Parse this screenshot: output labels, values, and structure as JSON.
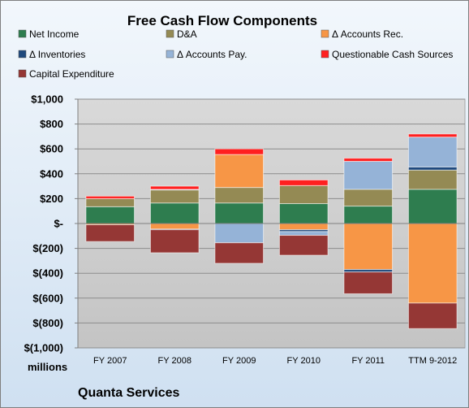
{
  "chart_data": {
    "type": "bar",
    "stacked": true,
    "title": "Free Cash Flow Components",
    "unit_label": "millions",
    "company": "Quanta Services",
    "categories": [
      "FY 2007",
      "FY 2008",
      "FY 2009",
      "FY 2010",
      "FY 2011",
      "TTM 9-2012"
    ],
    "y_ticks": [
      "$1,000",
      "$800",
      "$600",
      "$400",
      "$200",
      "$-",
      "$(200)",
      "$(400)",
      "$(600)",
      "$(800)",
      "$(1,000)"
    ],
    "ylim": [
      -1000,
      1000
    ],
    "grid": true,
    "legend_position": "top",
    "series": [
      {
        "name": "Net Income",
        "color": "#2e7d4f",
        "values": [
          135,
          165,
          165,
          160,
          140,
          275
        ]
      },
      {
        "name": "D&A",
        "color": "#948a54",
        "values": [
          65,
          105,
          125,
          145,
          135,
          155
        ]
      },
      {
        "name": "Δ Accounts Rec.",
        "color": "#f79646",
        "values": [
          -10,
          -45,
          265,
          -50,
          -370,
          -640
        ]
      },
      {
        "name": "Δ Inventories",
        "color": "#1f497d",
        "values": [
          0,
          -5,
          0,
          -15,
          -20,
          25
        ]
      },
      {
        "name": "Δ Accounts Pay.",
        "color": "#95b3d7",
        "values": [
          0,
          5,
          -155,
          -30,
          225,
          240
        ]
      },
      {
        "name": "Questionable Cash Sources",
        "color": "#ff2020",
        "values": [
          20,
          25,
          45,
          45,
          25,
          25
        ]
      },
      {
        "name": "Capital Expenditure",
        "color": "#953735",
        "values": [
          -135,
          -185,
          -165,
          -160,
          -175,
          -205
        ]
      }
    ]
  }
}
